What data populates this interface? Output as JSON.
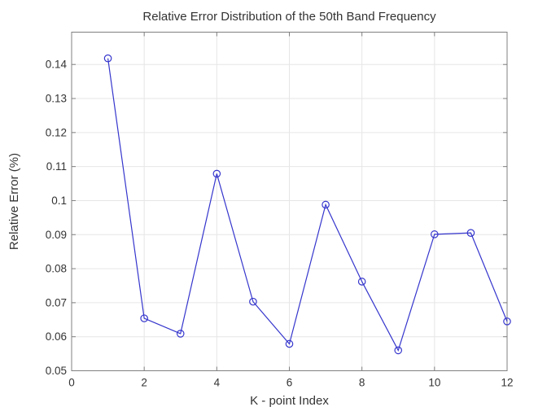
{
  "window": {
    "background": "#ffffff"
  },
  "chart_data": {
    "type": "line",
    "title": "Relative Error Distribution of the 50th Band Frequency",
    "xlabel": "K - point Index",
    "ylabel": "Relative Error (%)",
    "x": [
      1,
      2,
      3,
      4,
      5,
      6,
      7,
      8,
      9,
      10,
      11,
      12
    ],
    "y": [
      0.1418,
      0.0654,
      0.0609,
      0.1079,
      0.0703,
      0.0579,
      0.0988,
      0.0762,
      0.056,
      0.0901,
      0.0905,
      0.0645
    ],
    "series_name": "Relative error per k-point",
    "marker": "circle",
    "xlim": [
      0,
      12
    ],
    "ylim": [
      0.05,
      0.1495
    ],
    "xticks": [
      0,
      2,
      4,
      6,
      8,
      10,
      12
    ],
    "xtick_labels": [
      "0",
      "2",
      "4",
      "6",
      "8",
      "10",
      "12"
    ],
    "yticks": [
      0.05,
      0.06,
      0.07,
      0.08,
      0.09,
      0.1,
      0.11,
      0.12,
      0.13,
      0.14
    ],
    "ytick_labels": [
      "0.05",
      "0.06",
      "0.07",
      "0.08",
      "0.09",
      "0.1",
      "0.11",
      "0.12",
      "0.13",
      "0.14"
    ],
    "grid": true,
    "legend": null,
    "colors": {
      "line": "#3535CD",
      "grid": "#E6E6E6",
      "axis_box": "#808080",
      "text": "#333333"
    }
  }
}
